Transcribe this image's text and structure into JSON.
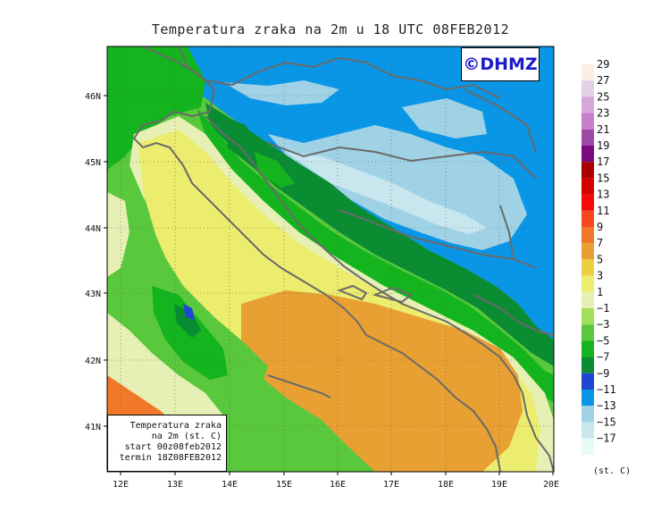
{
  "title": "Temperatura zraka na 2m u 18 UTC 08FEB2012",
  "logo": "©DHMZ",
  "info": {
    "line1": "Temperatura zraka",
    "line2": "na 2m (st. C)",
    "line3": "start 00z08feb2012",
    "line4": "termin 18Z08FEB2012"
  },
  "axes": {
    "lon_labels": [
      "12E",
      "13E",
      "14E",
      "15E",
      "16E",
      "17E",
      "18E",
      "19E",
      "20E"
    ],
    "lat_labels": [
      "41N",
      "42N",
      "43N",
      "44N",
      "45N",
      "46N"
    ]
  },
  "colorbar": {
    "unit": "(st. C)",
    "labels": [
      "29",
      "27",
      "25",
      "23",
      "21",
      "19",
      "17",
      "15",
      "13",
      "11",
      "9",
      "7",
      "5",
      "3",
      "1",
      "−1",
      "−3",
      "−5",
      "−7",
      "−9",
      "−11",
      "−13",
      "−15",
      "−17"
    ],
    "colors": [
      "#fbeee0",
      "#e3cfe6",
      "#d7a7d9",
      "#c77fcc",
      "#a04aa8",
      "#7c0a7c",
      "#a80000",
      "#d40000",
      "#f50a0a",
      "#f5461e",
      "#f07828",
      "#e8a032",
      "#ecd040",
      "#ecec6e",
      "#e6f0b4",
      "#a0e05a",
      "#5ac83c",
      "#14b41e",
      "#0a8c32",
      "#1e46d2",
      "#0a96e6",
      "#a0d2e6",
      "#c8e6ee",
      "#e6faf8"
    ]
  }
}
